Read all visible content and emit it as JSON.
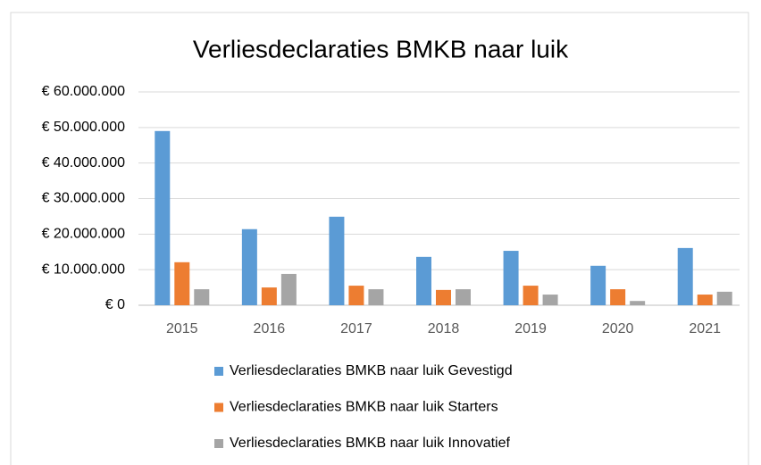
{
  "chart_data": {
    "type": "bar",
    "title": "Verliesdeclaraties BMKB naar luik",
    "categories": [
      "2015",
      "2016",
      "2017",
      "2018",
      "2019",
      "2020",
      "2021"
    ],
    "series": [
      {
        "name": "Verliesdeclaraties BMKB naar luik Gevestigd",
        "color": "#5b9bd5",
        "values": [
          49000000,
          21400000,
          24900000,
          13600000,
          15300000,
          11100000,
          16100000
        ]
      },
      {
        "name": "Verliesdeclaraties BMKB naar luik Starters",
        "color": "#ed7d31",
        "values": [
          12100000,
          5000000,
          5500000,
          4300000,
          5500000,
          4500000,
          3000000
        ]
      },
      {
        "name": "Verliesdeclaraties BMKB naar luik Innovatief",
        "color": "#a5a5a5",
        "values": [
          4500000,
          8800000,
          4500000,
          4500000,
          3000000,
          1200000,
          3800000
        ]
      }
    ],
    "ylim": [
      0,
      60000000
    ],
    "yticks": [
      {
        "value": 0,
        "label": "€ 0"
      },
      {
        "value": 10000000,
        "label": "€ 10.000.000"
      },
      {
        "value": 20000000,
        "label": "€ 20.000.000"
      },
      {
        "value": 30000000,
        "label": "€ 30.000.000"
      },
      {
        "value": 40000000,
        "label": "€ 40.000.000"
      },
      {
        "value": 50000000,
        "label": "€ 50.000.000"
      },
      {
        "value": 60000000,
        "label": "€ 60.000.000"
      }
    ],
    "grid": true,
    "legend": "bottom"
  }
}
